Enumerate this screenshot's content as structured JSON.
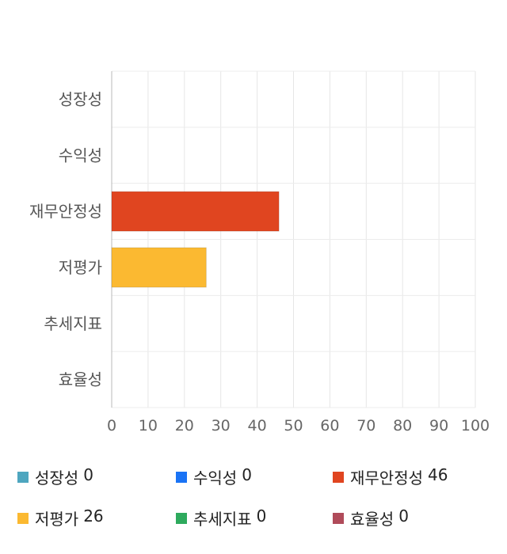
{
  "chart_data": {
    "type": "bar",
    "orientation": "horizontal",
    "title": "",
    "xlabel": "",
    "ylabel": "",
    "categories": [
      "성장성",
      "수익성",
      "재무안정성",
      "저평가",
      "추세지표",
      "효율성"
    ],
    "values": [
      0,
      0,
      46,
      26,
      0,
      0
    ],
    "colors": [
      "#4ea6bf",
      "#1a73f5",
      "#e04520",
      "#fbb931",
      "#2eaa5d",
      "#b04b5a"
    ],
    "xlim": [
      0,
      100
    ],
    "xticks": [
      0,
      10,
      20,
      30,
      40,
      50,
      60,
      70,
      80,
      90,
      100
    ],
    "grid": true,
    "legend_position": "bottom"
  }
}
